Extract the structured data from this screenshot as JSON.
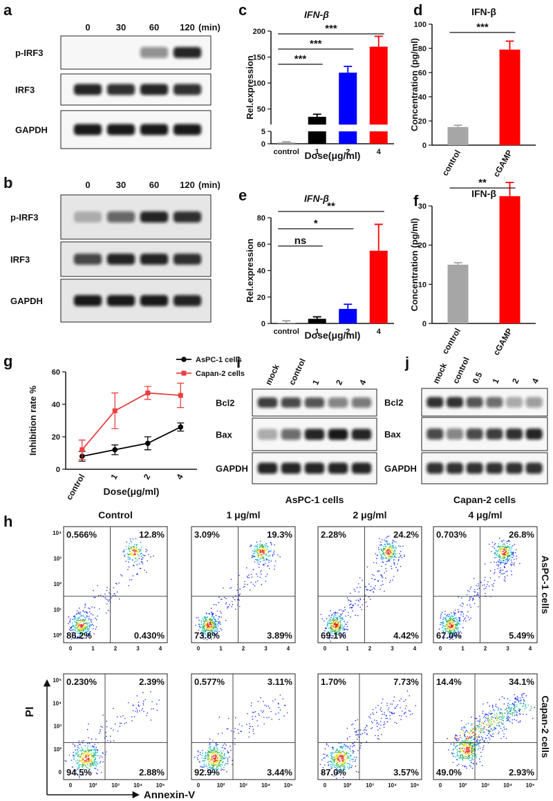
{
  "chart_data": [
    {
      "panel": "c",
      "type": "bar",
      "title": "IFN-β",
      "y_label": "Rel.expression",
      "x_label": "Dose(μg/ml)",
      "categories": [
        "control",
        "1",
        "2",
        "4"
      ],
      "values": [
        0.5,
        35,
        120,
        170
      ],
      "errors": [
        0.3,
        5,
        12,
        20
      ],
      "colors": [
        "#9e9e9e",
        "#000000",
        "#0000ff",
        "#ff0000"
      ],
      "ylim": [
        0,
        200
      ],
      "ybreak": [
        5,
        20
      ],
      "yticks": [
        0,
        5,
        50,
        100,
        150,
        200
      ],
      "brackets": [
        {
          "label": "***",
          "span": [
            "control",
            "1"
          ]
        },
        {
          "label": "***",
          "span": [
            "control",
            "2"
          ]
        },
        {
          "label": "***",
          "span": [
            "control",
            "4"
          ]
        }
      ]
    },
    {
      "panel": "d",
      "type": "bar",
      "title": "IFN-β",
      "y_label": "Concentration (pg/ml)",
      "categories": [
        "control",
        "cGAMP"
      ],
      "values": [
        15,
        79
      ],
      "errors": [
        1.5,
        7
      ],
      "colors": [
        "#a6a6a6",
        "#ff0000"
      ],
      "ylim": [
        0,
        100
      ],
      "yticks": [
        0,
        20,
        40,
        60,
        80,
        100
      ],
      "brackets": [
        {
          "label": "***",
          "span": [
            "control",
            "cGAMP"
          ]
        }
      ]
    },
    {
      "panel": "e",
      "type": "bar",
      "title": "IFN-β",
      "y_label": "Rel.expression",
      "x_label": "Dose(μg/ml)",
      "categories": [
        "control",
        "1",
        "2",
        "4"
      ],
      "values": [
        0.5,
        3.5,
        11,
        55
      ],
      "errors": [
        1.5,
        1.5,
        3.5,
        20
      ],
      "colors": [
        "#9e9e9e",
        "#000000",
        "#0000ff",
        "#ff0000"
      ],
      "ylim": [
        0,
        80
      ],
      "yticks": [
        0,
        20,
        40,
        60,
        80
      ],
      "brackets": [
        {
          "label": "ns",
          "span": [
            "control",
            "1"
          ]
        },
        {
          "label": "*",
          "span": [
            "control",
            "2"
          ]
        },
        {
          "label": "**",
          "span": [
            "control",
            "4"
          ]
        }
      ]
    },
    {
      "panel": "f",
      "type": "bar",
      "title": "IFN-β",
      "y_label": "Concentration (pg/ml)",
      "categories": [
        "control",
        "cGAMP"
      ],
      "values": [
        15,
        32.5
      ],
      "errors": [
        0.5,
        3.5
      ],
      "colors": [
        "#a6a6a6",
        "#ff0000"
      ],
      "ylim": [
        0,
        30
      ],
      "yticks": [
        0,
        10,
        20,
        30
      ],
      "brackets": [
        {
          "label": "**",
          "span": [
            "control",
            "cGAMP"
          ]
        }
      ]
    },
    {
      "panel": "g",
      "type": "line",
      "y_label": "Inhibition rate %",
      "x_label": "Dose(μg/ml)",
      "categories": [
        "control",
        "1",
        "2",
        "4"
      ],
      "ylim": [
        0,
        60
      ],
      "yticks": [
        0,
        20,
        40,
        60
      ],
      "series": [
        {
          "name": "AsPC-1 cells",
          "color": "#000000",
          "marker": "circle",
          "values": [
            8,
            12,
            16,
            26
          ],
          "errors": [
            3,
            3,
            4,
            2.5
          ]
        },
        {
          "name": "Capan-2 cells",
          "color": "#e84040",
          "marker": "square",
          "values": [
            12,
            36,
            47,
            45.5
          ],
          "errors": [
            6,
            11,
            4,
            7.5
          ]
        }
      ]
    }
  ],
  "blots": [
    {
      "panel": "a",
      "lanes": [
        "0",
        "30",
        "60",
        "120"
      ],
      "unit": "(min)",
      "rows": [
        {
          "label": "p-IRF3",
          "bands": [
            0,
            0,
            0.45,
            0.9
          ]
        },
        {
          "label": "IRF3",
          "bands": [
            0.9,
            0.85,
            0.9,
            0.85
          ]
        },
        {
          "label": "GAPDH",
          "bands": [
            0.95,
            0.95,
            0.95,
            0.95
          ]
        }
      ]
    },
    {
      "panel": "b",
      "lanes": [
        "0",
        "30",
        "60",
        "120"
      ],
      "unit": "(min)",
      "rows": [
        {
          "label": "p-IRF3",
          "bands": [
            0.25,
            0.6,
            0.9,
            0.85
          ]
        },
        {
          "label": "IRF3",
          "bands": [
            0.75,
            0.9,
            0.9,
            0.85
          ]
        },
        {
          "label": "GAPDH",
          "bands": [
            0.95,
            0.95,
            0.95,
            0.9
          ]
        }
      ]
    },
    {
      "panel": "i",
      "lanes": [
        "mock",
        "control",
        "1",
        "2",
        "4"
      ],
      "caption": "AsPC-1 cells",
      "rows": [
        {
          "label": "Bcl2",
          "bands": [
            0.8,
            0.75,
            0.7,
            0.5,
            0.55
          ]
        },
        {
          "label": "Bax",
          "bands": [
            0.3,
            0.6,
            0.9,
            0.95,
            0.9
          ]
        },
        {
          "label": "GAPDH",
          "bands": [
            0.9,
            0.9,
            0.9,
            0.9,
            0.9
          ]
        }
      ]
    },
    {
      "panel": "j",
      "lanes": [
        "mock",
        "control",
        "0.5",
        "1",
        "2",
        "4"
      ],
      "caption": "Capan-2 cells",
      "rows": [
        {
          "label": "Bcl2",
          "bands": [
            0.85,
            0.85,
            0.7,
            0.6,
            0.35,
            0.4
          ]
        },
        {
          "label": "Bax",
          "bands": [
            0.75,
            0.5,
            0.75,
            0.8,
            0.85,
            0.9
          ]
        },
        {
          "label": "GAPDH",
          "bands": [
            0.85,
            0.85,
            0.85,
            0.85,
            0.85,
            0.85
          ]
        }
      ]
    }
  ],
  "flow": {
    "panel": "h",
    "x_label": "Annexin-V",
    "y_label": "PI",
    "columns": [
      "Control",
      "1 μg/ml",
      "2 μg/ml",
      "4 μg/ml"
    ],
    "rows": [
      {
        "label": "AsPC-1 cells",
        "xticks": [
          "0",
          "1",
          "2",
          "3",
          "4"
        ],
        "yticks": [
          "10⁰",
          "10¹",
          "10²",
          "10³",
          "10⁴"
        ],
        "plots": [
          {
            "ul": "0.566%",
            "ur": "12.8%",
            "ll": "86.2%",
            "lr": "0.430%"
          },
          {
            "ul": "3.09%",
            "ur": "19.3%",
            "ll": "73.8%",
            "lr": "3.89%"
          },
          {
            "ul": "2.28%",
            "ur": "24.2%",
            "ll": "69.1%",
            "lr": "4.42%"
          },
          {
            "ul": "0.703%",
            "ur": "26.8%",
            "ll": "67.0%",
            "lr": "5.49%"
          }
        ]
      },
      {
        "label": "Capan-2 cells",
        "xticks": [
          "0",
          "10²",
          "10³",
          "10⁴",
          "10⁵"
        ],
        "yticks": [
          "0",
          "10²",
          "10³",
          "10⁴",
          "10⁵"
        ],
        "plots": [
          {
            "ul": "0.230%",
            "ur": "2.39%",
            "ll": "94.5%",
            "lr": "2.88%"
          },
          {
            "ul": "0.577%",
            "ur": "3.11%",
            "ll": "92.9%",
            "lr": "3.44%"
          },
          {
            "ul": "1.70%",
            "ur": "7.73%",
            "ll": "87.0%",
            "lr": "3.57%"
          },
          {
            "ul": "14.4%",
            "ur": "34.1%",
            "ll": "49.0%",
            "lr": "2.93%"
          }
        ]
      }
    ]
  }
}
